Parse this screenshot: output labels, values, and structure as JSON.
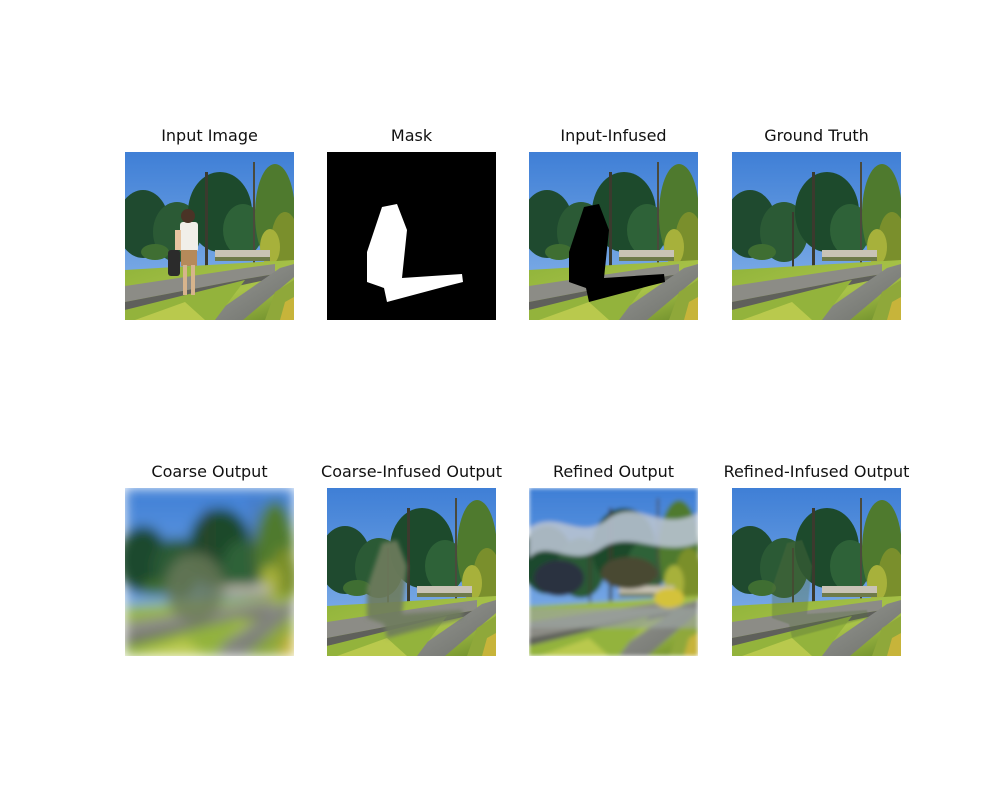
{
  "panels": [
    {
      "title": "Input Image"
    },
    {
      "title": "Mask"
    },
    {
      "title": "Input-Infused"
    },
    {
      "title": "Ground Truth"
    },
    {
      "title": "Coarse Output"
    },
    {
      "title": "Coarse-Infused Output"
    },
    {
      "title": "Refined Output"
    },
    {
      "title": "Refined-Infused Output"
    }
  ]
}
